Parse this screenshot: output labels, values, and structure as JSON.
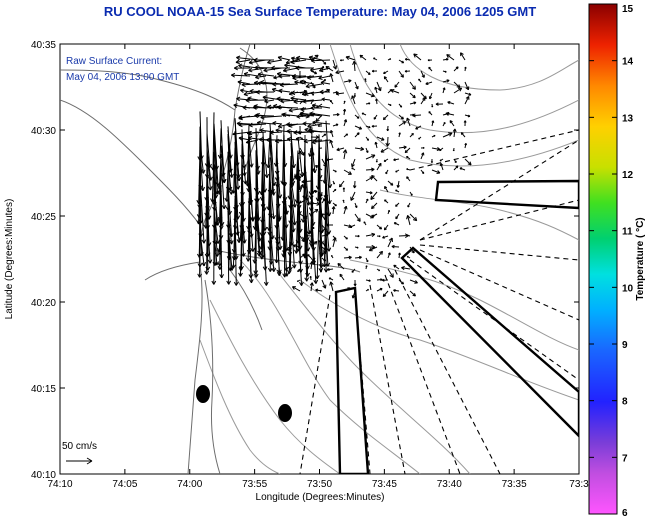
{
  "title": "RU COOL  NOAA-15  Sea Surface Temperature:  May 04, 2006 1205 GMT",
  "annotation": {
    "line1": "Raw Surface Current:",
    "line2": "May 04, 2006 13:00 GMT"
  },
  "scale_label": "50 cm/s",
  "xlabel": "Longitude (Degrees:Minutes)",
  "ylabel": "Latitude (Degrees:Minutes)",
  "x_ticks": [
    "74:10",
    "74:05",
    "74:00",
    "73:55",
    "73:50",
    "73:45",
    "73:40",
    "73:35",
    "73:3"
  ],
  "y_ticks": [
    "40:35",
    "40:30",
    "40:25",
    "40:20",
    "40:15",
    "40:10"
  ],
  "colorbar": {
    "label": "Temperature ( °C)",
    "ticks": [
      "15",
      "14",
      "13",
      "12",
      "11",
      "10",
      "9",
      "8",
      "7",
      "6"
    ],
    "range": [
      6,
      15
    ]
  },
  "colors": {
    "title": "#0a2bb0",
    "annotation": "#1a3aaa",
    "contour": "#9a9a9a",
    "land_outline": "#6e6e6e"
  }
}
